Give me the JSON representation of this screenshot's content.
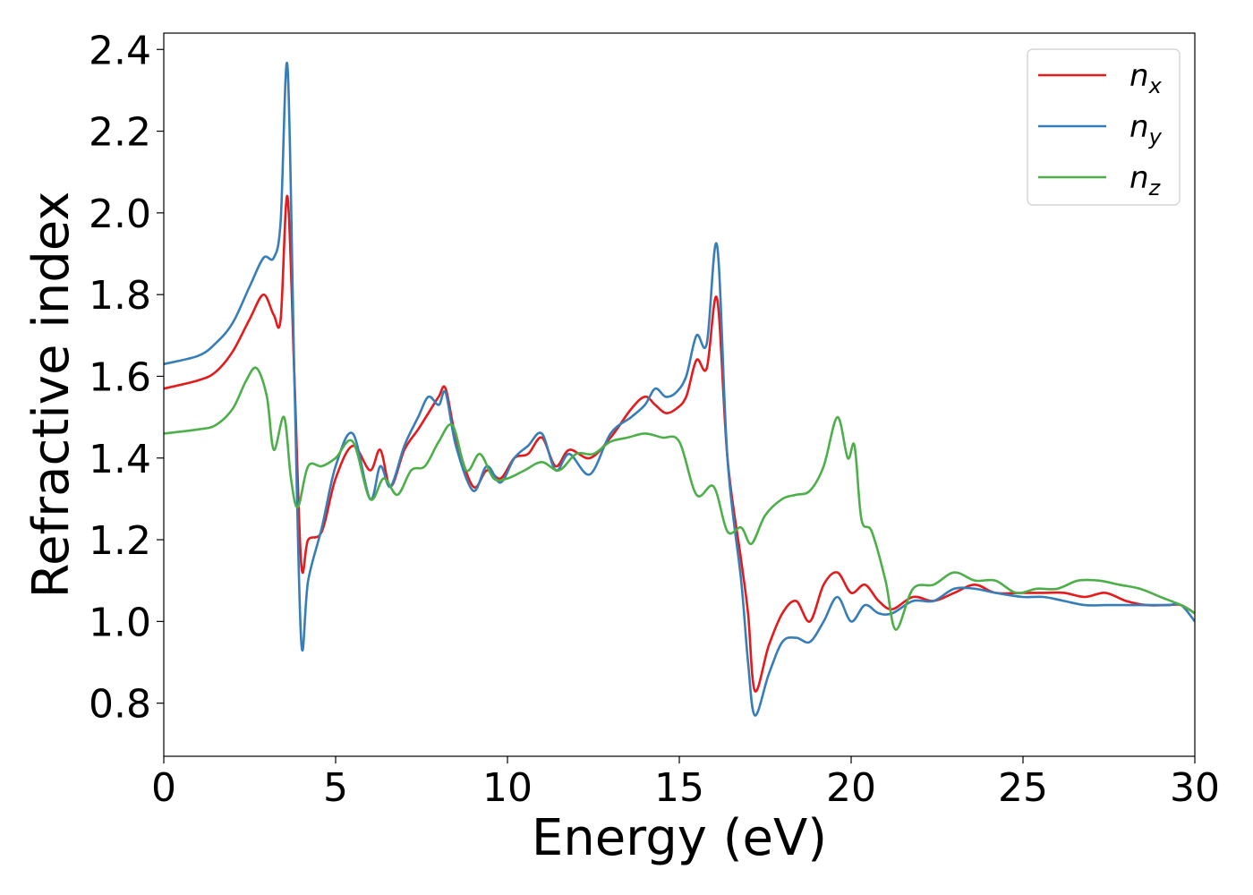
{
  "chart_data": {
    "type": "line",
    "xlabel": "Energy (eV)",
    "ylabel": "Refractive index",
    "xlim": [
      0,
      30
    ],
    "ylim": [
      0.67,
      2.44
    ],
    "xticks": [
      "0",
      "5",
      "10",
      "15",
      "20",
      "25",
      "30"
    ],
    "yticks": [
      "0.8",
      "1.0",
      "1.2",
      "1.4",
      "1.6",
      "1.8",
      "2.0",
      "2.2",
      "2.4"
    ],
    "grid": false,
    "legend_position": "top-right",
    "series": [
      {
        "name": "n_x",
        "label_base": "n",
        "label_sub": "x",
        "color": "#e41a1c",
        "x": [
          0,
          1,
          1.5,
          2,
          2.5,
          2.9,
          3.2,
          3.4,
          3.6,
          3.8,
          4.0,
          4.2,
          4.6,
          5.0,
          5.5,
          6.0,
          6.3,
          6.6,
          7.0,
          7.4,
          7.7,
          8.0,
          8.2,
          8.5,
          9.0,
          9.4,
          9.8,
          10.2,
          10.6,
          11.0,
          11.4,
          11.8,
          12.4,
          13.0,
          13.6,
          14.0,
          14.3,
          14.6,
          14.9,
          15.2,
          15.5,
          15.8,
          16.1,
          16.4,
          16.8,
          17.0,
          17.2,
          17.6,
          18.0,
          18.4,
          18.8,
          19.2,
          19.6,
          20.0,
          20.4,
          20.8,
          21.2,
          21.8,
          22.4,
          23.0,
          23.6,
          24.2,
          25.0,
          25.6,
          26.2,
          26.8,
          27.4,
          28.0,
          28.6,
          29.2,
          29.6,
          30.0
        ],
        "y": [
          1.57,
          1.59,
          1.61,
          1.66,
          1.74,
          1.8,
          1.75,
          1.74,
          2.04,
          1.6,
          1.14,
          1.2,
          1.22,
          1.35,
          1.43,
          1.37,
          1.42,
          1.33,
          1.42,
          1.47,
          1.51,
          1.55,
          1.57,
          1.45,
          1.33,
          1.37,
          1.35,
          1.4,
          1.41,
          1.45,
          1.38,
          1.42,
          1.4,
          1.45,
          1.52,
          1.55,
          1.53,
          1.51,
          1.52,
          1.55,
          1.64,
          1.62,
          1.79,
          1.4,
          1.15,
          1.02,
          0.83,
          0.94,
          1.02,
          1.05,
          1.0,
          1.09,
          1.12,
          1.07,
          1.09,
          1.05,
          1.03,
          1.06,
          1.05,
          1.07,
          1.09,
          1.07,
          1.07,
          1.07,
          1.07,
          1.06,
          1.07,
          1.05,
          1.04,
          1.04,
          1.04,
          1.02
        ]
      },
      {
        "name": "n_y",
        "label_base": "n",
        "label_sub": "y",
        "color": "#377eb8",
        "x": [
          0,
          1,
          1.5,
          2,
          2.5,
          2.9,
          3.2,
          3.4,
          3.6,
          3.8,
          4.0,
          4.2,
          4.6,
          5.0,
          5.5,
          6.0,
          6.3,
          6.6,
          7.0,
          7.4,
          7.7,
          8.0,
          8.2,
          8.5,
          9.0,
          9.4,
          9.8,
          10.2,
          10.6,
          11.0,
          11.4,
          11.8,
          12.4,
          13.0,
          13.6,
          14.0,
          14.3,
          14.6,
          14.9,
          15.2,
          15.5,
          15.8,
          16.1,
          16.4,
          16.8,
          17.0,
          17.2,
          17.6,
          18.0,
          18.4,
          18.8,
          19.2,
          19.6,
          20.0,
          20.4,
          20.8,
          21.2,
          21.8,
          22.4,
          23.0,
          23.6,
          24.2,
          25.0,
          25.6,
          26.2,
          26.8,
          27.4,
          28.0,
          28.6,
          29.2,
          29.6,
          30.0
        ],
        "y": [
          1.63,
          1.65,
          1.68,
          1.73,
          1.82,
          1.89,
          1.89,
          1.98,
          2.36,
          1.6,
          0.95,
          1.1,
          1.23,
          1.38,
          1.46,
          1.3,
          1.38,
          1.33,
          1.43,
          1.5,
          1.55,
          1.53,
          1.56,
          1.43,
          1.32,
          1.38,
          1.34,
          1.4,
          1.43,
          1.46,
          1.37,
          1.41,
          1.36,
          1.46,
          1.5,
          1.53,
          1.57,
          1.55,
          1.56,
          1.6,
          1.7,
          1.68,
          1.92,
          1.4,
          1.1,
          0.9,
          0.77,
          0.87,
          0.95,
          0.96,
          0.95,
          1.0,
          1.06,
          1.0,
          1.04,
          1.02,
          1.02,
          1.05,
          1.05,
          1.08,
          1.08,
          1.07,
          1.06,
          1.06,
          1.05,
          1.04,
          1.04,
          1.04,
          1.04,
          1.04,
          1.04,
          1.0
        ]
      },
      {
        "name": "n_z",
        "label_base": "n",
        "label_sub": "z",
        "color": "#4daf4a",
        "x": [
          0,
          1,
          1.5,
          2,
          2.4,
          2.7,
          3.0,
          3.2,
          3.5,
          3.7,
          3.9,
          4.2,
          4.6,
          5.0,
          5.5,
          6.0,
          6.4,
          6.8,
          7.2,
          7.6,
          8.0,
          8.4,
          8.8,
          9.2,
          9.6,
          10.0,
          10.5,
          11.0,
          11.5,
          12.0,
          12.5,
          13.0,
          13.5,
          14.0,
          14.5,
          15.0,
          15.5,
          16.0,
          16.4,
          16.8,
          17.1,
          17.5,
          18.0,
          18.4,
          18.8,
          19.2,
          19.6,
          19.9,
          20.1,
          20.3,
          20.6,
          21.0,
          21.3,
          21.8,
          22.4,
          23.0,
          23.6,
          24.2,
          24.8,
          25.4,
          26.0,
          26.6,
          27.2,
          27.8,
          28.4,
          29.0,
          29.6,
          30.0
        ],
        "y": [
          1.46,
          1.47,
          1.48,
          1.52,
          1.59,
          1.62,
          1.55,
          1.42,
          1.5,
          1.35,
          1.28,
          1.38,
          1.38,
          1.4,
          1.44,
          1.3,
          1.35,
          1.31,
          1.37,
          1.38,
          1.44,
          1.48,
          1.37,
          1.41,
          1.35,
          1.35,
          1.37,
          1.39,
          1.37,
          1.41,
          1.41,
          1.44,
          1.45,
          1.46,
          1.45,
          1.44,
          1.31,
          1.33,
          1.22,
          1.23,
          1.19,
          1.26,
          1.3,
          1.31,
          1.32,
          1.38,
          1.5,
          1.4,
          1.43,
          1.25,
          1.22,
          1.1,
          0.98,
          1.08,
          1.09,
          1.12,
          1.1,
          1.1,
          1.07,
          1.08,
          1.08,
          1.1,
          1.1,
          1.09,
          1.08,
          1.06,
          1.04,
          1.02
        ]
      }
    ]
  }
}
